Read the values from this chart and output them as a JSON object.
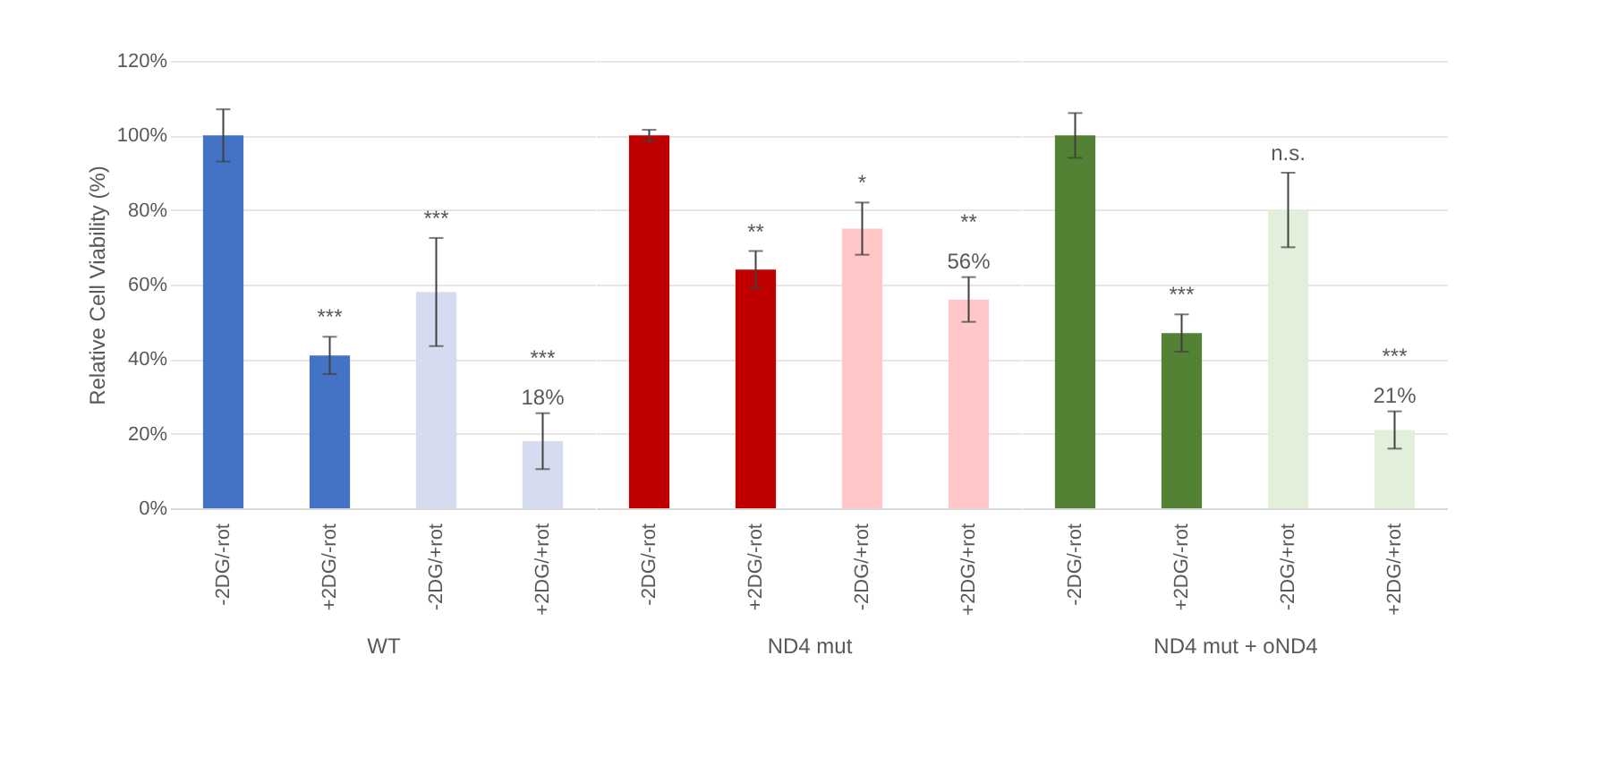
{
  "chart_data": [
    {
      "type": "bar",
      "xlabel": "WT",
      "ylabel": "Relative Cell Viability (%)",
      "categories": [
        "-2DG/-rot",
        "+2DG/-rot",
        "-2DG/+rot",
        "+2DG/+rot"
      ],
      "values": [
        100,
        41,
        58,
        18
      ],
      "colors": [
        "#4472c4",
        "#4472c4",
        "#d6dcf0",
        "#d6dcf0"
      ],
      "errors": [
        7,
        5,
        14.5,
        7.5
      ],
      "value_labels": [
        null,
        null,
        null,
        "18%"
      ],
      "annotations": [
        {
          "text": "***",
          "x": "+2DG/-rot",
          "y": 46
        },
        {
          "text": "***",
          "x": "-2DG/+rot",
          "y": 72.5
        },
        {
          "text": "***",
          "x": "+2DG/+rot",
          "y": 25.5
        }
      ],
      "ylim": [
        0,
        120
      ],
      "yticks": [
        {
          "value": 0,
          "label": "0%"
        },
        {
          "value": 20,
          "label": "20%"
        },
        {
          "value": 40,
          "label": "40%"
        },
        {
          "value": 60,
          "label": "60%"
        },
        {
          "value": 80,
          "label": "80%"
        },
        {
          "value": 100,
          "label": "100%"
        },
        {
          "value": 120,
          "label": "120%"
        }
      ],
      "grid": "y"
    },
    {
      "type": "bar",
      "xlabel": "ND4 mut",
      "categories": [
        "-2DG/-rot",
        "+2DG/-rot",
        "-2DG/+rot",
        "+2DG/+rot"
      ],
      "values": [
        100,
        64,
        75,
        56
      ],
      "colors": [
        "#c00000",
        "#c00000",
        "#ffc7c7",
        "#ffc7c7"
      ],
      "errors": [
        1.5,
        5,
        7,
        6
      ],
      "value_labels": [
        null,
        null,
        null,
        "56%"
      ],
      "annotations": [
        {
          "text": "**",
          "x": "+2DG/-rot",
          "y": 69
        },
        {
          "text": "*",
          "x": "-2DG/+rot",
          "y": 82
        },
        {
          "text": "**",
          "x": "+2DG/+rot",
          "y": 62
        }
      ],
      "ylim": [
        0,
        120
      ],
      "yticks": [
        0,
        20,
        40,
        60,
        80,
        100,
        120
      ],
      "grid": "y",
      "tick_labels": "x"
    },
    {
      "type": "bar",
      "xlabel": "ND4 mut  + oND4",
      "categories": [
        "-2DG/-rot",
        "+2DG/-rot",
        "-2DG/+rot",
        "+2DG/+rot"
      ],
      "values": [
        100,
        47,
        80,
        21
      ],
      "colors": [
        "#548235",
        "#548235",
        "#e2efda",
        "#e2efda"
      ],
      "errors": [
        6,
        5,
        10,
        5
      ],
      "value_labels": [
        null,
        null,
        null,
        "21%"
      ],
      "annotations": [
        {
          "text": "***",
          "x": "+2DG/-rot",
          "y": 52
        },
        {
          "text": "n.s.",
          "x": "-2DG/+rot",
          "y": 90
        },
        {
          "text": "***",
          "x": "+2DG/+rot",
          "y": 26
        }
      ],
      "ylim": [
        0,
        120
      ],
      "yticks": [
        0,
        20,
        40,
        60,
        80,
        100,
        120
      ],
      "grid": "y",
      "tick_labels": "x"
    }
  ]
}
